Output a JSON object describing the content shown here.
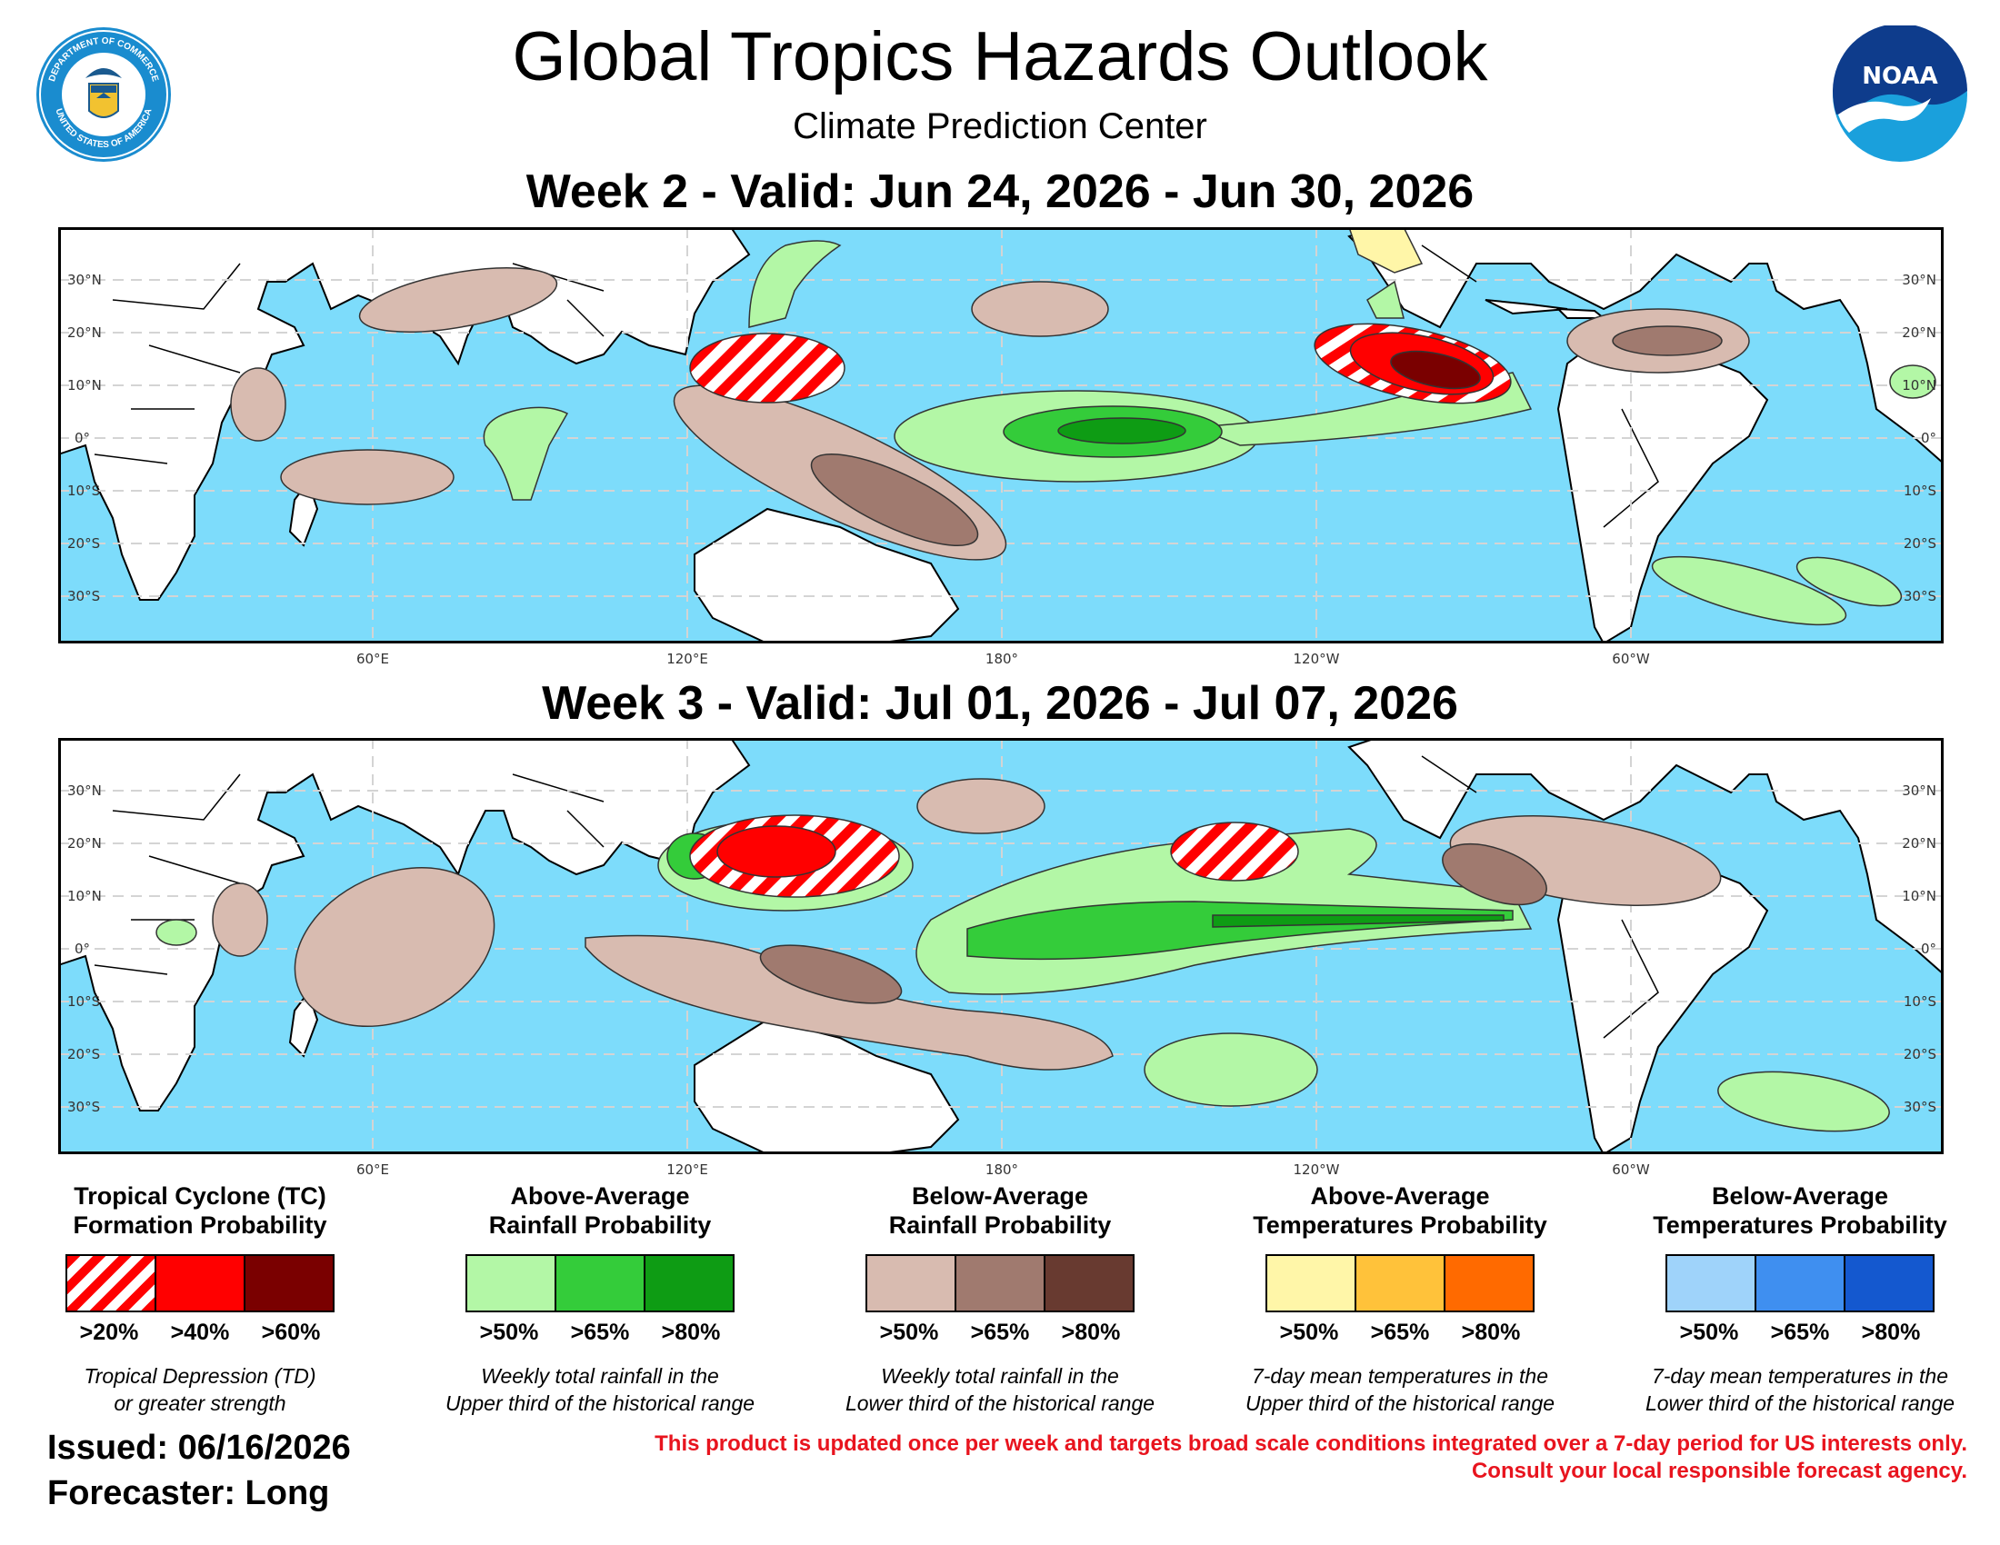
{
  "header": {
    "title": "Global Tropics Hazards Outlook",
    "subtitle": "Climate Prediction Center",
    "seal_text_top": "DEPARTMENT OF COMMERCE",
    "seal_text_bottom": "UNITED STATES OF AMERICA",
    "noaa_logo_text": "NOAA"
  },
  "maps": [
    {
      "title": "Week 2 - Valid: Jun 24, 2026 - Jun 30, 2026"
    },
    {
      "title": "Week 3 - Valid: Jul 01, 2026 - Jul 07, 2026"
    }
  ],
  "axes": {
    "lat_labels": [
      "30°N",
      "20°N",
      "10°N",
      "0°",
      "10°S",
      "20°S",
      "30°S"
    ],
    "lon_labels": [
      "60°E",
      "120°E",
      "180°",
      "120°W",
      "60°W"
    ]
  },
  "colors": {
    "ocean": "#7ddcfb",
    "tc_hatch": "#ff0000",
    "tc_40": "#ff0000",
    "tc_60": "#7a0000",
    "rain_above": [
      "#b3f7a6",
      "#34cc3a",
      "#0e9c14"
    ],
    "rain_below": [
      "#d8bbb0",
      "#a07a6f",
      "#683a30"
    ],
    "temp_above": [
      "#fff6a8",
      "#ffc23a",
      "#ff6a00"
    ],
    "temp_below": [
      "#9fd3fa",
      "#3f8ff0",
      "#1458cf"
    ]
  },
  "legend": [
    {
      "title_line1": "Tropical Cyclone (TC)",
      "title_line2": "Formation Probability",
      "thresholds": [
        ">20%",
        ">40%",
        ">60%"
      ],
      "desc_line1": "Tropical Depression (TD)",
      "desc_line2": "or greater strength"
    },
    {
      "title_line1": "Above-Average",
      "title_line2": "Rainfall Probability",
      "thresholds": [
        ">50%",
        ">65%",
        ">80%"
      ],
      "desc_line1": "Weekly total rainfall in the",
      "desc_line2": "Upper third of the historical range"
    },
    {
      "title_line1": "Below-Average",
      "title_line2": "Rainfall Probability",
      "thresholds": [
        ">50%",
        ">65%",
        ">80%"
      ],
      "desc_line1": "Weekly total rainfall in the",
      "desc_line2": "Lower third of the historical range"
    },
    {
      "title_line1": "Above-Average",
      "title_line2": "Temperatures Probability",
      "thresholds": [
        ">50%",
        ">65%",
        ">80%"
      ],
      "desc_line1": "7-day mean temperatures in the",
      "desc_line2": "Upper third of the historical range"
    },
    {
      "title_line1": "Below-Average",
      "title_line2": "Temperatures Probability",
      "thresholds": [
        ">50%",
        ">65%",
        ">80%"
      ],
      "desc_line1": "7-day mean temperatures in the",
      "desc_line2": "Lower third of the historical range"
    }
  ],
  "footer": {
    "issued": "Issued: 06/16/2026",
    "forecaster": "Forecaster: Long",
    "disclaimer_line1": "This product is updated once per week and targets broad scale conditions integrated over a 7-day period for US interests only.",
    "disclaimer_line2": "Consult your local responsible forecast agency."
  }
}
